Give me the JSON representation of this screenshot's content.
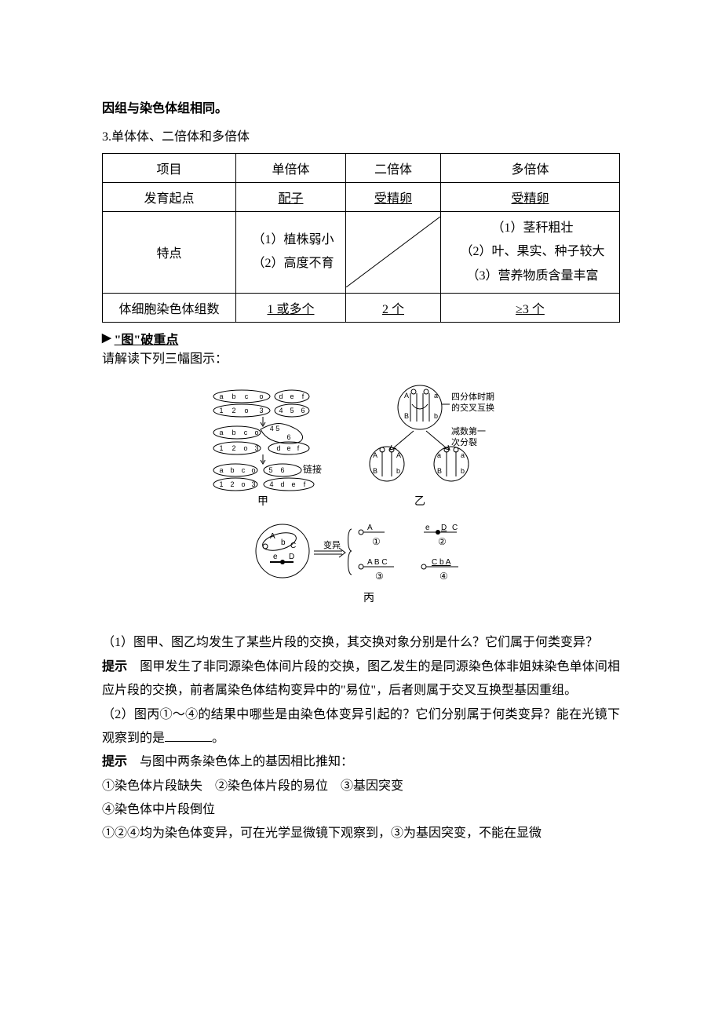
{
  "intro_bold": "因组与染色体组相同。",
  "sec3_head": "3.单体体、二倍体和多倍体",
  "table": {
    "h1": "项目",
    "h2": "单倍体",
    "h3": "二倍体",
    "h4": "多倍体",
    "r2c1": "发育起点",
    "r2c2": "配子",
    "r2c3": "受精卵",
    "r2c4": "受精卵",
    "r3c1": "特点",
    "r3c2": "（1）植株弱小\n（2）高度不育",
    "r3c4": "（1）茎秆粗壮\n（2）叶、果实、种子较大\n（3）营养物质含量丰富",
    "r4c1": "体细胞染色体组数",
    "r4c2": "1 或多个",
    "r4c3": "2 个",
    "r4c4": "≥3 个"
  },
  "keypoint_icon": "▶",
  "keypoint_label": "\"图\"破重点",
  "instruct": "请解读下列三幅图示：",
  "fig_labels": {
    "jia": "甲",
    "yi": "乙",
    "bing": "丙",
    "note1": "四分体时期\n的交叉互换",
    "note2": "减数第一\n次分裂",
    "bianyi": "变异",
    "link": "链接"
  },
  "q1": "（1）图甲、图乙均发生了某些片段的交换，其交换对象分别是什么？它们属于何类变异？",
  "a1_label": "提示",
  "a1_body": "　图甲发生了非同源染色体间片段的交换，图乙发生的是同源染色体非姐妹染色单体间相应片段的交换，前者属染色体结构变异中的\"易位\"，后者则属于交叉互换型基因重组。",
  "q2a": "（2）图丙①～④的结果中哪些是由染色体变异引起的？它们分别属于何类变异？能在光镜下观察到的是",
  "q2b": "。",
  "a2_label": "提示",
  "a2_body": "　与图中两条染色体上的基因相比推知：",
  "a2_l1": "①染色体片段缺失　②染色体片段的易位　③基因突变",
  "a2_l2": "④染色体中片段倒位",
  "a2_l3": "①②④均为染色体变异，可在光学显微镜下观察到，③为基因突变，不能在显微",
  "colors": {
    "text": "#000000",
    "bg": "#ffffff",
    "border": "#000000"
  }
}
